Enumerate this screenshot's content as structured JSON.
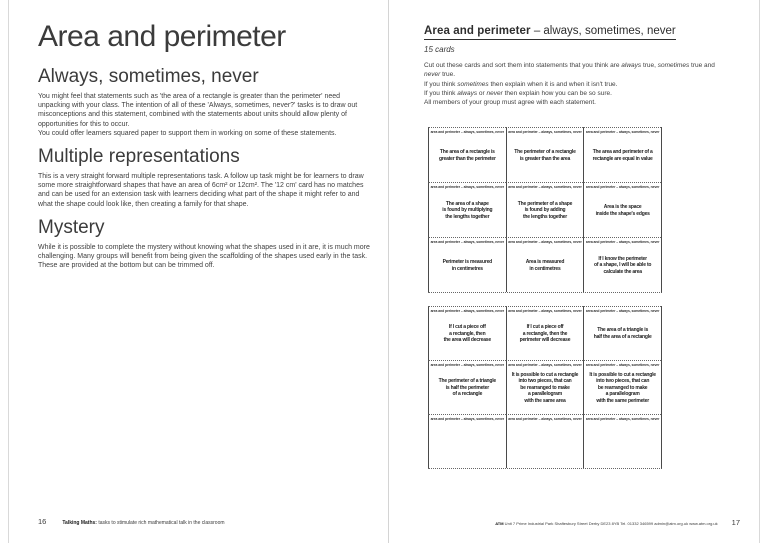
{
  "left_page": {
    "title": "Area and perimeter",
    "sections": [
      {
        "heading": "Always, sometimes, never",
        "paragraphs": [
          "You might feel that statements such as 'the area of a rectangle is greater than the perimeter' need unpacking with your class. The intention of all of these 'Always, sometimes, never?' tasks is to draw out misconceptions and this statement, combined with the statements about units should allow plenty of opportunities for this to occur.",
          "You could offer learners squared paper to support them in working on some of these statements."
        ]
      },
      {
        "heading": "Multiple representations",
        "paragraphs": [
          "This is a very straight forward multiple representations task. A follow up task might be for learners to draw some more straightforward shapes that have an area of 6cm² or 12cm². The '12 cm' card has no matches and can be used for an extension task with learners deciding what part of the shape it might refer to and what the shape could look like, then creating a family for that shape."
        ]
      },
      {
        "heading": "Mystery",
        "paragraphs": [
          "While it is possible to complete the mystery without knowing what the shapes used in it are, it is much more challenging. Many groups will benefit from being given the scaffolding of the shapes used early in the task. These are provided at the bottom but can be trimmed off."
        ]
      }
    ],
    "footer": {
      "page_number": "16",
      "series_bold": "Talking Maths:",
      "series_rest": " tasks to stimulate rich mathematical talk in the classroom"
    }
  },
  "right_page": {
    "title_bold": "Area and perimeter",
    "title_rest": " – always, sometimes, never",
    "subtitle": "15 cards",
    "instructions": [
      "Cut out these cards and sort them into statements that you think are *always* true, *sometimes* true and",
      "*never* true.",
      "If you think *sometimes* then explain when it is and when it isn't true.",
      "If you think *always* or *never* then explain how you can be so sure.",
      "All members of your group must agree with each statement."
    ],
    "card_header": "area and perimeter – always, sometimes, never",
    "card_blocks": [
      {
        "cards": [
          "The area of a rectangle is\ngreater than the perimeter",
          "The perimeter of a rectangle\nis greater than the area",
          "The area and perimeter of a\nrectangle are equal in value",
          "The area of a shape\nis found by multiplying\nthe lengths together",
          "The perimeter of a shape\nis found by adding\nthe lengths together",
          "Area is the space\ninside the shape's edges",
          "Perimeter is measured\nin centimetres",
          "Area is measured\nin centimetres",
          "If I know the perimeter\nof a shape, I will be able to\ncalculate the area"
        ]
      },
      {
        "cards": [
          "If I cut a piece off\na rectangle, then\nthe area will decrease",
          "If I cut a piece off\na rectangle, then the\nperimeter will decrease",
          "The area of a triangle is\nhalf the area of a rectangle",
          "The perimeter of a triangle\nis half the perimeter\nof a rectangle",
          "It is possible to cut a rectangle\ninto two pieces, that can\nbe rearranged to make\na parallelogram\nwith the same area",
          "It is possible to cut a rectangle\ninto two pieces, that can\nbe rearranged to make\na parallelogram\nwith the same perimeter",
          "",
          "",
          ""
        ]
      }
    ],
    "footer": {
      "org_bold": "ATM",
      "org_rest": " Unit 7 Prime Industrial Park Shaftesbury Street Derby DE23 8YB Tel. 01332 346599 admin@atm.org.uk www.atm.org.uk",
      "page_number": "17"
    }
  },
  "colors": {
    "text": "#3a3a3a",
    "card_text": "#222222",
    "title_rule": "#2e2e2e",
    "grid_line": "#4a4a4a",
    "page_edge": "#d9d9d9"
  }
}
